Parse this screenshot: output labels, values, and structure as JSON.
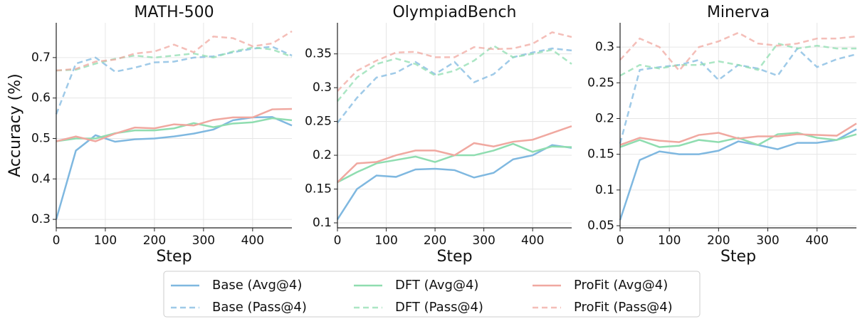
{
  "chart_data": [
    {
      "type": "line",
      "title": "MATH-500",
      "ylabel": "Accuracy (%)",
      "xlabel": "Step",
      "x": [
        0,
        40,
        80,
        120,
        160,
        200,
        240,
        280,
        320,
        360,
        400,
        440,
        480
      ],
      "xlim": [
        0,
        480
      ],
      "xticks": [
        0,
        100,
        200,
        300,
        400
      ],
      "ylim": [
        0.279,
        0.786
      ],
      "yticks": [
        0.3,
        0.4,
        0.5,
        0.6,
        0.7
      ],
      "grid": true,
      "series": [
        {
          "name": "Base (Avg@4)",
          "color": "#7fb8e0",
          "dashed": false,
          "values": [
            0.3,
            0.47,
            0.508,
            0.492,
            0.498,
            0.5,
            0.505,
            0.512,
            0.522,
            0.545,
            0.552,
            0.553,
            0.532
          ]
        },
        {
          "name": "Base (Pass@4)",
          "color": "#7fb8e0",
          "dashed": true,
          "values": [
            0.56,
            0.685,
            0.7,
            0.665,
            0.675,
            0.688,
            0.69,
            0.7,
            0.703,
            0.713,
            0.722,
            0.727,
            0.705
          ]
        },
        {
          "name": "DFT (Avg@4)",
          "color": "#8fddb0",
          "dashed": false,
          "values": [
            0.493,
            0.5,
            0.5,
            0.513,
            0.52,
            0.52,
            0.525,
            0.538,
            0.528,
            0.537,
            0.54,
            0.55,
            0.545
          ]
        },
        {
          "name": "DFT (Pass@4)",
          "color": "#8fddb0",
          "dashed": true,
          "values": [
            0.668,
            0.67,
            0.685,
            0.697,
            0.705,
            0.7,
            0.705,
            0.71,
            0.7,
            0.715,
            0.725,
            0.72,
            0.702
          ]
        },
        {
          "name": "ProFit (Avg@4)",
          "color": "#f0a8a0",
          "dashed": false,
          "values": [
            0.493,
            0.505,
            0.493,
            0.512,
            0.527,
            0.525,
            0.535,
            0.532,
            0.546,
            0.552,
            0.552,
            0.572,
            0.573
          ]
        },
        {
          "name": "ProFit (Pass@4)",
          "color": "#f0a8a0",
          "dashed": true,
          "values": [
            0.668,
            0.672,
            0.69,
            0.695,
            0.71,
            0.715,
            0.732,
            0.713,
            0.752,
            0.748,
            0.728,
            0.735,
            0.765
          ]
        }
      ]
    },
    {
      "type": "line",
      "title": "OlympiadBench",
      "xlabel": "Step",
      "x": [
        0,
        40,
        80,
        120,
        160,
        200,
        240,
        280,
        320,
        360,
        400,
        440,
        480
      ],
      "xlim": [
        0,
        480
      ],
      "xticks": [
        0,
        100,
        200,
        300,
        400
      ],
      "ylim": [
        0.0926,
        0.396
      ],
      "yticks": [
        0.1,
        0.15,
        0.2,
        0.25,
        0.3,
        0.35
      ],
      "grid": true,
      "series": [
        {
          "name": "Base (Avg@4)",
          "color": "#7fb8e0",
          "dashed": false,
          "values": [
            0.105,
            0.15,
            0.17,
            0.168,
            0.179,
            0.18,
            0.178,
            0.167,
            0.174,
            0.194,
            0.2,
            0.215,
            0.211
          ]
        },
        {
          "name": "Base (Pass@4)",
          "color": "#7fb8e0",
          "dashed": true,
          "values": [
            0.248,
            0.285,
            0.315,
            0.322,
            0.338,
            0.32,
            0.338,
            0.308,
            0.32,
            0.345,
            0.352,
            0.358,
            0.355
          ]
        },
        {
          "name": "DFT (Avg@4)",
          "color": "#8fddb0",
          "dashed": false,
          "values": [
            0.16,
            0.175,
            0.188,
            0.193,
            0.198,
            0.19,
            0.2,
            0.2,
            0.207,
            0.217,
            0.205,
            0.213,
            0.212
          ]
        },
        {
          "name": "DFT (Pass@4)",
          "color": "#8fddb0",
          "dashed": true,
          "values": [
            0.28,
            0.315,
            0.335,
            0.343,
            0.335,
            0.318,
            0.325,
            0.34,
            0.362,
            0.345,
            0.35,
            0.356,
            0.335
          ]
        },
        {
          "name": "ProFit (Avg@4)",
          "color": "#f0a8a0",
          "dashed": false,
          "values": [
            0.16,
            0.188,
            0.19,
            0.2,
            0.207,
            0.207,
            0.2,
            0.218,
            0.213,
            0.22,
            0.223,
            0.233,
            0.243
          ]
        },
        {
          "name": "ProFit (Pass@4)",
          "color": "#f0a8a0",
          "dashed": true,
          "values": [
            0.295,
            0.325,
            0.34,
            0.352,
            0.353,
            0.345,
            0.345,
            0.36,
            0.357,
            0.358,
            0.365,
            0.382,
            0.375
          ]
        }
      ]
    },
    {
      "type": "line",
      "title": "Minerva",
      "xlabel": "Step",
      "x": [
        0,
        40,
        80,
        120,
        160,
        200,
        240,
        280,
        320,
        360,
        400,
        440,
        480
      ],
      "xlim": [
        0,
        480
      ],
      "xticks": [
        0,
        100,
        200,
        300,
        400
      ],
      "ylim": [
        0.047,
        0.334
      ],
      "yticks": [
        0.05,
        0.1,
        0.15,
        0.2,
        0.25,
        0.3
      ],
      "grid": true,
      "series": [
        {
          "name": "Base (Avg@4)",
          "color": "#7fb8e0",
          "dashed": false,
          "values": [
            0.058,
            0.142,
            0.154,
            0.15,
            0.15,
            0.155,
            0.168,
            0.163,
            0.157,
            0.166,
            0.166,
            0.17,
            0.185
          ]
        },
        {
          "name": "Base (Pass@4)",
          "color": "#7fb8e0",
          "dashed": true,
          "values": [
            0.165,
            0.268,
            0.272,
            0.275,
            0.282,
            0.254,
            0.275,
            0.27,
            0.26,
            0.298,
            0.272,
            0.283,
            0.29
          ]
        },
        {
          "name": "DFT (Avg@4)",
          "color": "#8fddb0",
          "dashed": false,
          "values": [
            0.16,
            0.17,
            0.16,
            0.162,
            0.17,
            0.167,
            0.173,
            0.163,
            0.178,
            0.18,
            0.173,
            0.17,
            0.178
          ]
        },
        {
          "name": "DFT (Pass@4)",
          "color": "#8fddb0",
          "dashed": true,
          "values": [
            0.26,
            0.275,
            0.27,
            0.275,
            0.275,
            0.28,
            0.275,
            0.268,
            0.305,
            0.298,
            0.302,
            0.298,
            0.298
          ]
        },
        {
          "name": "ProFit (Avg@4)",
          "color": "#f0a8a0",
          "dashed": false,
          "values": [
            0.163,
            0.173,
            0.169,
            0.167,
            0.177,
            0.18,
            0.172,
            0.175,
            0.175,
            0.178,
            0.177,
            0.176,
            0.193
          ]
        },
        {
          "name": "ProFit (Pass@4)",
          "color": "#f0a8a0",
          "dashed": true,
          "values": [
            0.282,
            0.312,
            0.3,
            0.267,
            0.3,
            0.308,
            0.32,
            0.305,
            0.302,
            0.305,
            0.312,
            0.312,
            0.315
          ]
        }
      ]
    }
  ]
}
